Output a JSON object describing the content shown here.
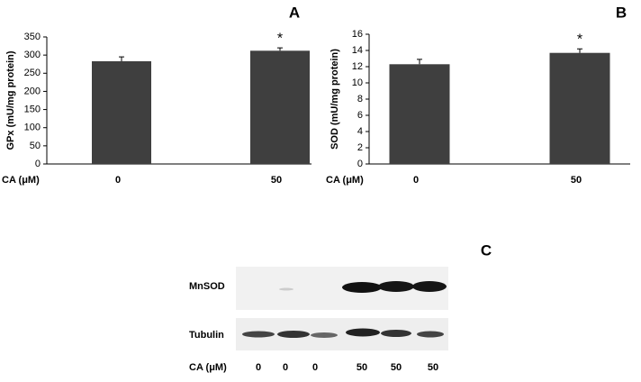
{
  "chart_data": [
    {
      "type": "bar",
      "panel": "A",
      "ylabel": "GPx (mU/mg protein)",
      "xlabel": "CA (μM)",
      "categories": [
        "0",
        "50"
      ],
      "values": [
        283,
        312
      ],
      "errors": [
        12,
        8
      ],
      "significance": [
        null,
        "*"
      ],
      "color": "#3f3f3f",
      "ylim": [
        0,
        350
      ],
      "yticks": [
        0,
        50,
        100,
        150,
        200,
        250,
        300,
        350
      ]
    },
    {
      "type": "bar",
      "panel": "B",
      "ylabel": "SOD (mU/mg protein)",
      "xlabel": "CA (μM)",
      "categories": [
        "0",
        "50"
      ],
      "values": [
        12.3,
        13.7
      ],
      "errors": [
        0.6,
        0.5
      ],
      "significance": [
        null,
        "*"
      ],
      "color": "#3f3f3f",
      "ylim": [
        0,
        16
      ],
      "yticks": [
        0,
        2,
        4,
        6,
        8,
        10,
        12,
        14,
        16
      ]
    }
  ],
  "blot": {
    "panel": "C",
    "rows": [
      "MnSOD",
      "Tubulin"
    ],
    "xlabel": "CA (μM)",
    "lanes": [
      "0",
      "0",
      "0",
      "50",
      "50",
      "50"
    ]
  }
}
